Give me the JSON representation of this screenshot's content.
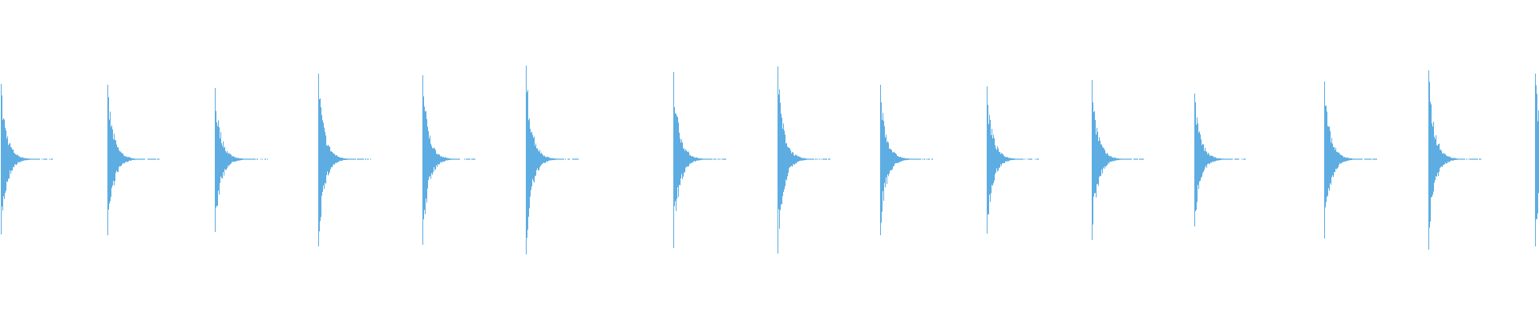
{
  "waveform": {
    "color": "#5DADE2",
    "background": "#FFFFFF",
    "duration_units": 1920,
    "pulses": [
      {
        "onset": 1,
        "peak_top": 0.47,
        "peak_bottom": 0.47
      },
      {
        "onset": 134,
        "peak_top": 0.465,
        "peak_bottom": 0.475
      },
      {
        "onset": 268,
        "peak_top": 0.445,
        "peak_bottom": 0.455
      },
      {
        "onset": 397,
        "peak_top": 0.535,
        "peak_bottom": 0.545
      },
      {
        "onset": 527,
        "peak_top": 0.525,
        "peak_bottom": 0.535
      },
      {
        "onset": 656,
        "peak_top": 0.585,
        "peak_bottom": 0.595
      },
      {
        "onset": 840,
        "peak_top": 0.545,
        "peak_bottom": 0.555
      },
      {
        "onset": 970,
        "peak_top": 0.58,
        "peak_bottom": 0.59
      },
      {
        "onset": 1098,
        "peak_top": 0.465,
        "peak_bottom": 0.475
      },
      {
        "onset": 1231,
        "peak_top": 0.455,
        "peak_bottom": 0.465
      },
      {
        "onset": 1362,
        "peak_top": 0.495,
        "peak_bottom": 0.505
      },
      {
        "onset": 1490,
        "peak_top": 0.41,
        "peak_bottom": 0.42
      },
      {
        "onset": 1652,
        "peak_top": 0.485,
        "peak_bottom": 0.495
      },
      {
        "onset": 1782,
        "peak_top": 0.555,
        "peak_bottom": 0.565
      },
      {
        "onset": 1915,
        "peak_top": 0.535,
        "peak_bottom": 0.545
      }
    ]
  }
}
